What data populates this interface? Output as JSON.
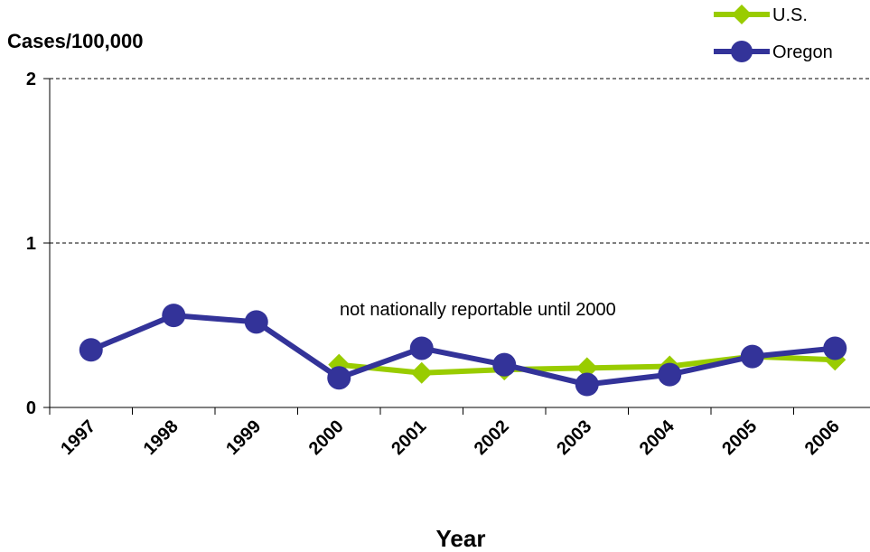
{
  "chart_data": {
    "type": "line",
    "ylabel": "Cases/100,000",
    "xlabel": "Year",
    "categories": [
      "1997",
      "1998",
      "1999",
      "2000",
      "2001",
      "2002",
      "2003",
      "2004",
      "2005",
      "2006"
    ],
    "ylim": [
      0,
      2
    ],
    "yticks": [
      "0",
      "1",
      "2"
    ],
    "grid": "horizontal dashed",
    "legend_position": "top-right",
    "annotation": "not nationally reportable until 2000",
    "series": [
      {
        "name": "U.S.",
        "color": "#99cc00",
        "marker": "diamond",
        "values": [
          null,
          null,
          null,
          0.26,
          0.21,
          0.23,
          0.24,
          0.25,
          0.31,
          0.29
        ]
      },
      {
        "name": "Oregon",
        "color": "#333399",
        "marker": "circle",
        "values": [
          0.35,
          0.56,
          0.52,
          0.18,
          0.36,
          0.26,
          0.14,
          0.2,
          0.31,
          0.36
        ]
      }
    ]
  }
}
